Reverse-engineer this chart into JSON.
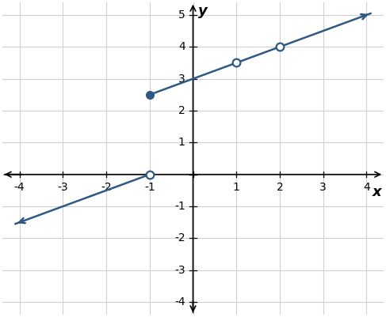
{
  "line_color": "#2E5986",
  "line_width": 1.8,
  "marker_size": 7,
  "xlim": [
    -4.4,
    4.4
  ],
  "ylim": [
    -4.4,
    5.4
  ],
  "xticks": [
    -4,
    -3,
    -2,
    -1,
    1,
    2,
    3,
    4
  ],
  "yticks": [
    -4,
    -3,
    -2,
    -1,
    1,
    2,
    3,
    4,
    5
  ],
  "xlabel": "x",
  "ylabel": "y",
  "background_color": "#ffffff",
  "grid_color": "#d0d0d0",
  "segment1": {
    "x_start": -4.1,
    "x_end": -1,
    "slope": 0.5,
    "intercept": 0.5
  },
  "segment2": {
    "x_start": -1,
    "x_end": 4.1,
    "slope": 0.5,
    "intercept": 3.0,
    "open_at": [
      1,
      2
    ]
  }
}
